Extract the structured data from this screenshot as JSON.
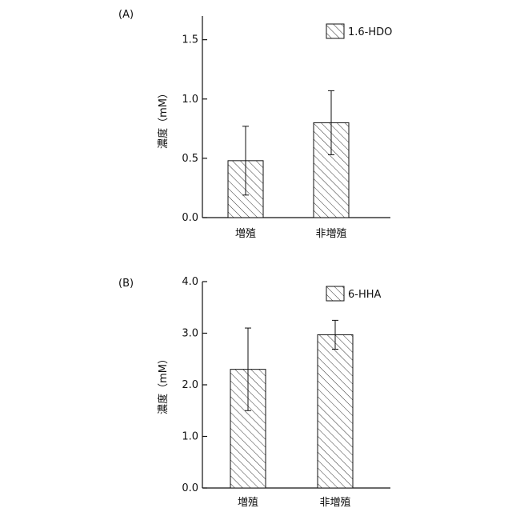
{
  "chart_data": [
    {
      "panel_label": "(A)",
      "type": "bar",
      "categories": [
        "増殖",
        "非増殖"
      ],
      "series": [
        {
          "name": "1.6-HDO",
          "values": [
            0.48,
            0.8
          ],
          "errors": [
            0.29,
            0.27
          ]
        }
      ],
      "ylabel": "濃度（mM）",
      "xlabel": "",
      "ylim": [
        0,
        1.7
      ],
      "yticks": [
        "0.0",
        "0.5",
        "1.0",
        "1.5"
      ],
      "ytick_values": [
        0,
        0.5,
        1.0,
        1.5
      ],
      "bar_fill": "hatched",
      "legend_position": "top-right",
      "grid": false
    },
    {
      "panel_label": "(B)",
      "type": "bar",
      "categories": [
        "増殖",
        "非増殖"
      ],
      "series": [
        {
          "name": "6-HHA",
          "values": [
            2.3,
            2.97
          ],
          "errors": [
            0.8,
            0.28
          ]
        }
      ],
      "ylabel": "濃度（mM）",
      "xlabel": "",
      "ylim": [
        0,
        4.0
      ],
      "yticks": [
        "0.0",
        "1.0",
        "2.0",
        "3.0",
        "4.0"
      ],
      "ytick_values": [
        0,
        1.0,
        2.0,
        3.0,
        4.0
      ],
      "bar_fill": "hatched",
      "legend_position": "top-right",
      "grid": false
    }
  ]
}
